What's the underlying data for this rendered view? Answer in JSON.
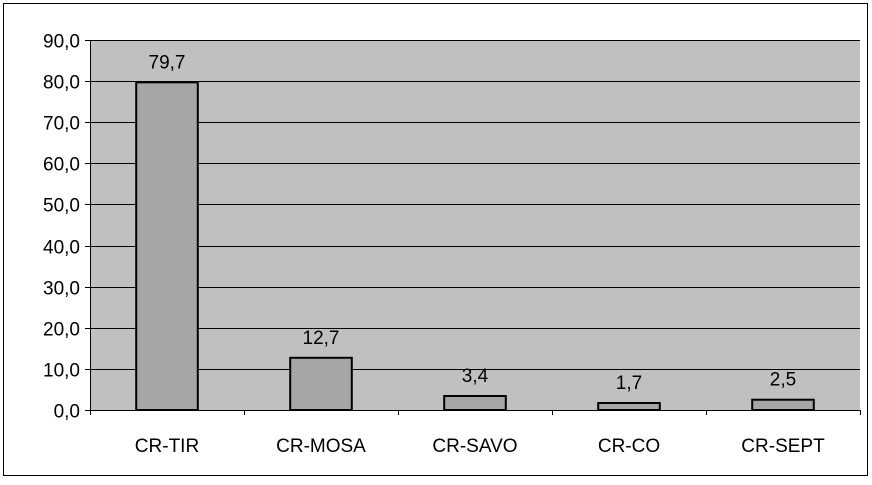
{
  "chart_data": {
    "type": "bar",
    "title": "",
    "xlabel": "",
    "ylabel": "",
    "categories": [
      "CR-TIR",
      "CR-MOSA",
      "CR-SAVO",
      "CR-CO",
      "CR-SEPT"
    ],
    "values": [
      79.7,
      12.7,
      3.4,
      1.7,
      2.5
    ],
    "data_labels": [
      "79,7",
      "12,7",
      "3,4",
      "1,7",
      "2,5"
    ],
    "ylim": [
      0,
      90
    ],
    "yticks": [
      0,
      10,
      20,
      30,
      40,
      50,
      60,
      70,
      80,
      90
    ],
    "ytick_labels": [
      "0,0",
      "10,0",
      "20,0",
      "30,0",
      "40,0",
      "50,0",
      "60,0",
      "70,0",
      "80,0",
      "90,0"
    ],
    "grid": true,
    "legend": "none",
    "colors": {
      "plot_background": "#c0c0c0",
      "bar_fill": "#a6a6a6",
      "bar_stroke": "#000000",
      "gridline": "#000000",
      "chart_border": "#000000"
    }
  }
}
